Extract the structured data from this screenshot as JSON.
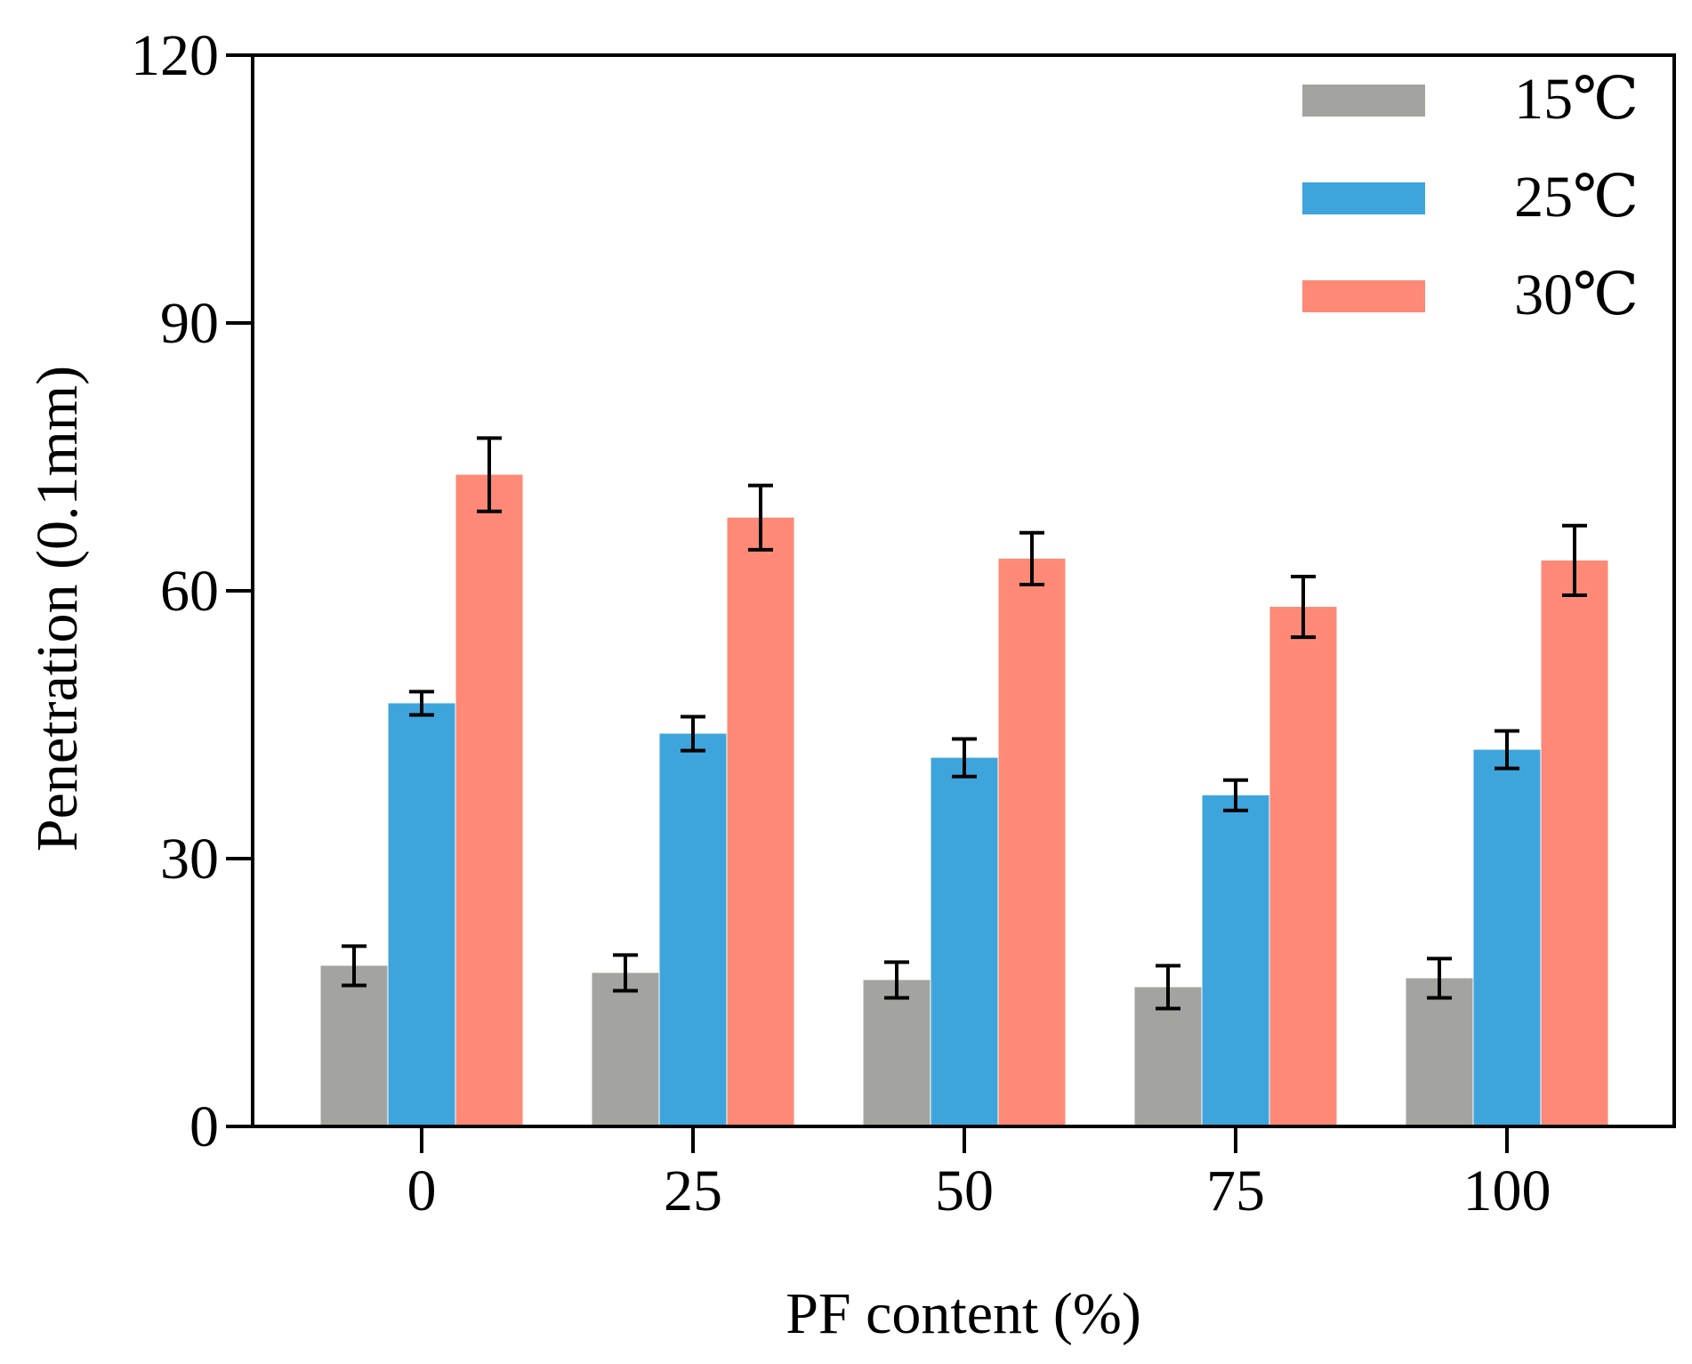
{
  "chart_data": {
    "type": "bar",
    "title": "",
    "xlabel": "PF content (%)",
    "ylabel": "Penetration (0.1mm)",
    "categories": [
      "0",
      "25",
      "50",
      "75",
      "100"
    ],
    "ylim": [
      0,
      120
    ],
    "yticks": [
      0,
      30,
      60,
      90,
      120
    ],
    "grid": false,
    "legend_position": "top-right",
    "series": [
      {
        "name": "15℃",
        "color": "#a3a3a0",
        "values": [
          18.0,
          17.2,
          16.4,
          15.6,
          16.6
        ],
        "errors": [
          2.2,
          2.0,
          2.0,
          2.4,
          2.2
        ]
      },
      {
        "name": "25℃",
        "color": "#3ea5dc",
        "values": [
          47.4,
          44.0,
          41.3,
          37.1,
          42.2
        ],
        "errors": [
          1.3,
          1.9,
          2.1,
          1.7,
          2.1
        ]
      },
      {
        "name": "30℃",
        "color": "#fd8976",
        "values": [
          73.0,
          68.2,
          63.6,
          58.2,
          63.4
        ],
        "errors": [
          4.1,
          3.6,
          2.9,
          3.4,
          3.9
        ]
      }
    ]
  }
}
